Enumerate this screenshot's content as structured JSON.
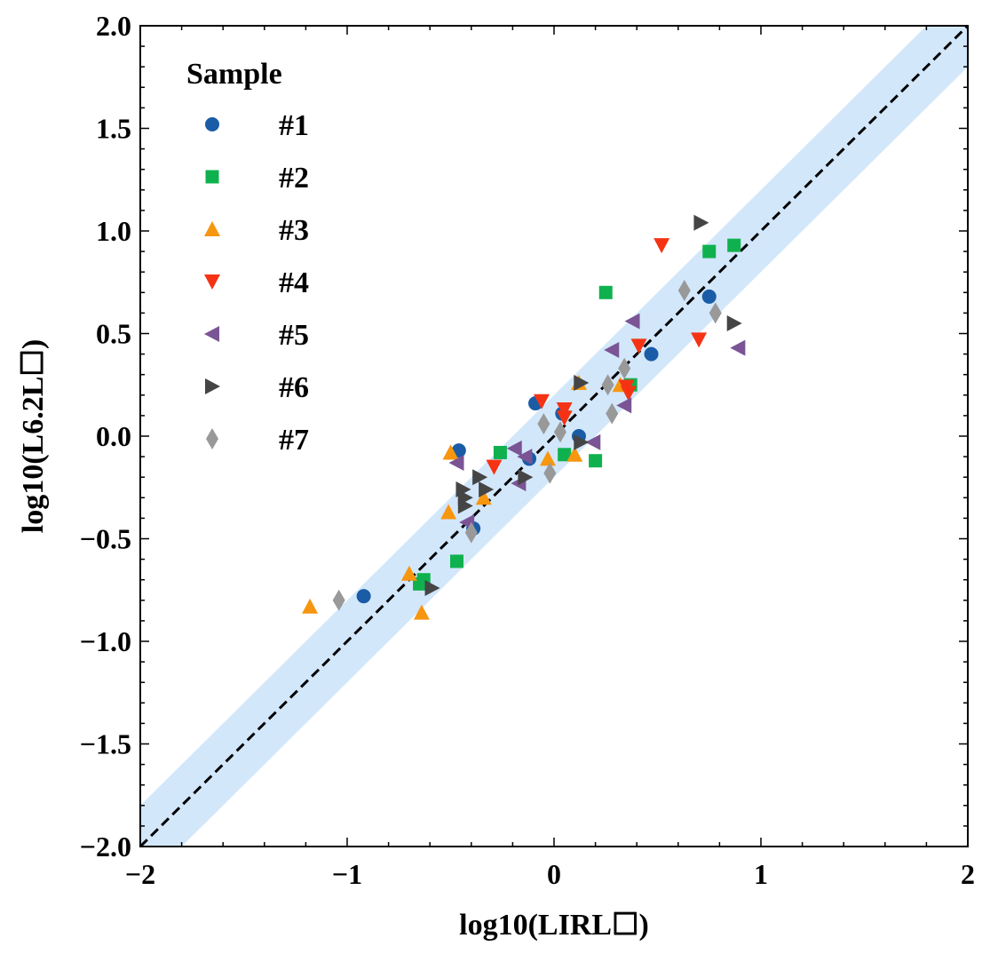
{
  "chart_data": {
    "type": "scatter",
    "xlabel": "log10(LIRL☐)",
    "ylabel": "log10(L6.2L☐)",
    "xlim": [
      -2,
      2
    ],
    "ylim": [
      -2,
      2
    ],
    "x_ticks": [
      -2,
      -1,
      0,
      1,
      2
    ],
    "y_ticks": [
      -2.0,
      -1.5,
      -1.0,
      -0.5,
      0.0,
      0.5,
      1.0,
      1.5,
      2.0
    ],
    "x_tick_labels": [
      "−2",
      "−1",
      "0",
      "1",
      "2"
    ],
    "y_tick_labels": [
      "−2.0",
      "−1.5",
      "−1.0",
      "−0.5",
      "0.0",
      "0.5",
      "1.0",
      "1.5",
      "2.0"
    ],
    "grid": false,
    "reference_line": {
      "type": "one-to-one",
      "style": "dashed",
      "color": "#000000",
      "band_halfwidth": 0.2,
      "band_color": "#d3e7fb"
    },
    "legend": {
      "title": "Sample",
      "placement": "top-left"
    },
    "series": [
      {
        "name": "#1",
        "marker": "circle",
        "color": "#1a5ca6",
        "points": [
          [
            -0.92,
            -0.78
          ],
          [
            -0.46,
            -0.07
          ],
          [
            -0.39,
            -0.45
          ],
          [
            -0.09,
            0.16
          ],
          [
            -0.12,
            -0.11
          ],
          [
            0.04,
            0.11
          ],
          [
            0.12,
            0.0
          ],
          [
            0.47,
            0.4
          ],
          [
            0.75,
            0.68
          ]
        ]
      },
      {
        "name": "#2",
        "marker": "square",
        "color": "#0fb14f",
        "points": [
          [
            -0.65,
            -0.72
          ],
          [
            -0.63,
            -0.7
          ],
          [
            -0.47,
            -0.61
          ],
          [
            -0.26,
            -0.08
          ],
          [
            0.05,
            -0.09
          ],
          [
            0.2,
            -0.12
          ],
          [
            0.25,
            0.7
          ],
          [
            0.37,
            0.25
          ],
          [
            0.75,
            0.9
          ],
          [
            0.87,
            0.93
          ]
        ]
      },
      {
        "name": "#3",
        "marker": "triangle-up",
        "color": "#f7960f",
        "points": [
          [
            -1.18,
            -0.83
          ],
          [
            -0.7,
            -0.67
          ],
          [
            -0.64,
            -0.86
          ],
          [
            -0.51,
            -0.37
          ],
          [
            -0.5,
            -0.08
          ],
          [
            -0.34,
            -0.3
          ],
          [
            -0.03,
            -0.11
          ],
          [
            0.1,
            -0.09
          ],
          [
            0.12,
            0.26
          ],
          [
            0.32,
            0.25
          ]
        ]
      },
      {
        "name": "#4",
        "marker": "triangle-down",
        "color": "#f53314",
        "points": [
          [
            -0.29,
            -0.15
          ],
          [
            -0.06,
            0.17
          ],
          [
            0.05,
            0.09
          ],
          [
            0.05,
            0.13
          ],
          [
            0.35,
            0.24
          ],
          [
            0.36,
            0.21
          ],
          [
            0.41,
            0.44
          ],
          [
            0.52,
            0.93
          ],
          [
            0.7,
            0.47
          ]
        ]
      },
      {
        "name": "#5",
        "marker": "triangle-left",
        "color": "#7a5495",
        "points": [
          [
            -0.47,
            -0.13
          ],
          [
            -0.42,
            -0.42
          ],
          [
            -0.19,
            -0.06
          ],
          [
            -0.14,
            -0.1
          ],
          [
            -0.17,
            -0.23
          ],
          [
            0.19,
            -0.03
          ],
          [
            0.28,
            0.42
          ],
          [
            0.34,
            0.15
          ],
          [
            0.38,
            0.56
          ],
          [
            0.89,
            0.43
          ]
        ]
      },
      {
        "name": "#6",
        "marker": "triangle-right",
        "color": "#454545",
        "points": [
          [
            -0.59,
            -0.74
          ],
          [
            -0.44,
            -0.26
          ],
          [
            -0.43,
            -0.3
          ],
          [
            -0.43,
            -0.34
          ],
          [
            -0.36,
            -0.2
          ],
          [
            -0.33,
            -0.26
          ],
          [
            -0.14,
            -0.2
          ],
          [
            0.13,
            -0.03
          ],
          [
            0.13,
            0.26
          ],
          [
            0.71,
            1.04
          ],
          [
            0.87,
            0.55
          ]
        ]
      },
      {
        "name": "#7",
        "marker": "thin-diamond",
        "color": "#999999",
        "points": [
          [
            -1.04,
            -0.8
          ],
          [
            -0.4,
            -0.47
          ],
          [
            -0.05,
            0.06
          ],
          [
            -0.02,
            -0.18
          ],
          [
            0.03,
            0.02
          ],
          [
            0.26,
            0.25
          ],
          [
            0.28,
            0.11
          ],
          [
            0.34,
            0.33
          ],
          [
            0.63,
            0.71
          ],
          [
            0.78,
            0.6
          ]
        ]
      }
    ]
  }
}
